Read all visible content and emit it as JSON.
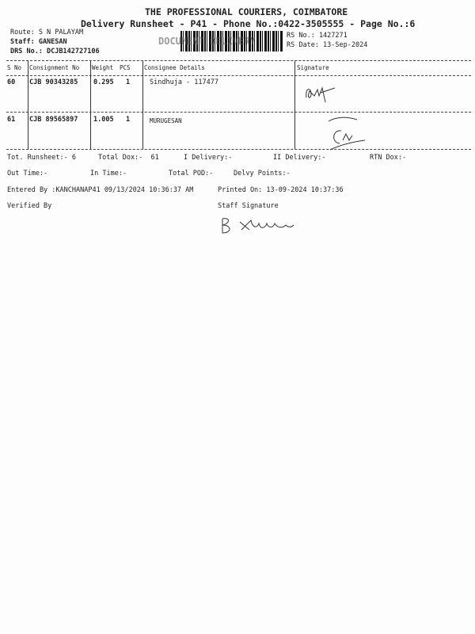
{
  "header": {
    "company": "THE PROFESSIONAL COURIERS, COIMBATORE",
    "subtitle": "Delivery Runsheet - P41 - Phone No.:0422-3505555 - Page No.:6",
    "route": "Route: S N PALAYAM",
    "staff": "Staff: GANESAN",
    "drs": "DRS No.: DCJB142727106",
    "rs_no": "RS No.: 1427271",
    "rs_date": "RS Date: 13-Sep-2024",
    "stamp": "DOCUMENT DELIVERY"
  },
  "table": {
    "headers": [
      "S No",
      "Consignment No",
      "Weight",
      "PCS",
      "Consignee Details",
      "Signature"
    ],
    "rows": [
      {
        "sno": "60",
        "cons": "CJB 90343285",
        "weight": "0.295",
        "pcs": "1",
        "consignee": "Sindhuja - 117477"
      },
      {
        "sno": "61",
        "cons": "CJB 89565897",
        "weight": "1.005",
        "pcs": "1",
        "consignee": "MURUGESAN"
      }
    ]
  },
  "summary": {
    "tot_runsheet": "Tot. Runsheet:- 6",
    "total_dox": "Total Dox:-  61",
    "i_delivery": "I Delivery:-",
    "ii_delivery": "II Delivery:-",
    "rtn_dox": "RTN Dox:-",
    "out_time": "Out Time:-",
    "in_time": "In Time:-",
    "total_pod": "Total POD:-",
    "delvy_points": "Delvy Points:-",
    "entered_by": "Entered By :KANCHANAP41 09/13/2024 10:36:37 AM",
    "printed_on": "Printed On: 13-09-2024 10:37:36",
    "verified_by": "Verified By",
    "staff_signature": "Staff Signature"
  }
}
